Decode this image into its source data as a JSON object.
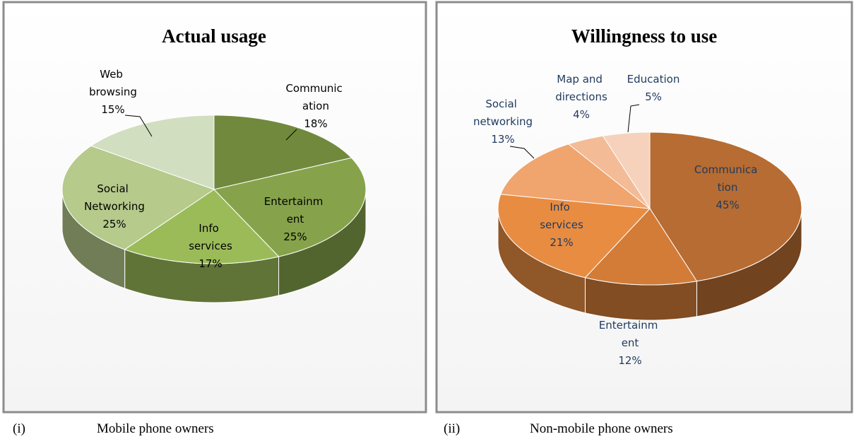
{
  "chart_data": [
    {
      "type": "pie",
      "title": "Actual usage",
      "caption_number": "(i)",
      "caption": "Mobile phone owners",
      "categories": [
        "Communic\nation",
        "Entertainm\nent",
        "Info\nservices",
        "Social\nNetworking",
        "Web\nbrowsing"
      ],
      "values": [
        18,
        25,
        17,
        25,
        15
      ],
      "value_labels": [
        "18%",
        "25%",
        "17%",
        "25%",
        "15%"
      ],
      "colors": [
        "#71893d",
        "#86a34b",
        "#9bbb59",
        "#b5ca8b",
        "#d2dec0"
      ]
    },
    {
      "type": "pie",
      "title": "Willingness to use",
      "caption_number": "(ii)",
      "caption": "Non-mobile phone owners",
      "categories": [
        "Communica\ntion",
        "Entertainm\nent",
        "Info\nservices",
        "Social\nnetworking",
        "Map and\ndirections",
        "Education"
      ],
      "values": [
        45,
        12,
        21,
        13,
        4,
        5
      ],
      "value_labels": [
        "45%",
        "12%",
        "21%",
        "13%",
        "4%",
        "5%"
      ],
      "colors": [
        "#b66c32",
        "#d27c38",
        "#e88c42",
        "#f0a46e",
        "#f3bb96",
        "#f6d2bd"
      ]
    }
  ]
}
